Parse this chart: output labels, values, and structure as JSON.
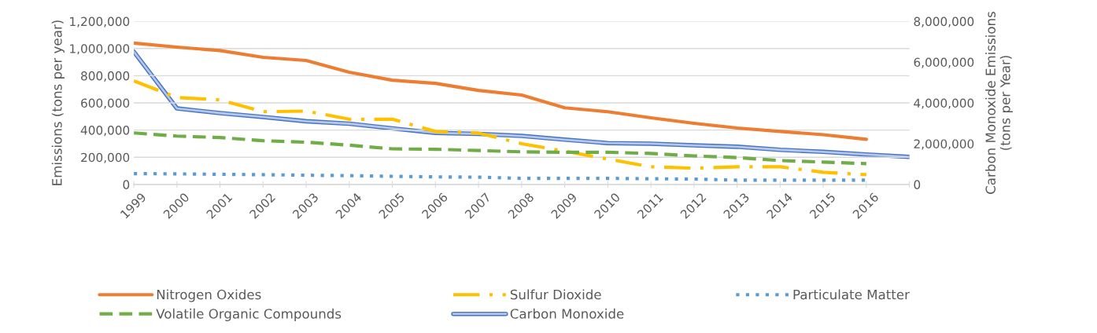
{
  "chart_data": {
    "type": "line",
    "categories": [
      "1999",
      "2000",
      "2001",
      "2002",
      "2003",
      "2004",
      "2005",
      "2006",
      "2007",
      "2008",
      "2009",
      "2010",
      "2011",
      "2012",
      "2013",
      "2014",
      "2015",
      "2016",
      null
    ],
    "series": [
      {
        "name": "Nitrogen Oxides",
        "color": "#ed7d31",
        "line_style": "solid",
        "values": [
          1040000,
          1010000,
          985000,
          935000,
          912000,
          825000,
          767000,
          744000,
          692000,
          658000,
          564000,
          535000,
          490000,
          450000,
          415000,
          390000,
          366000,
          332000,
          null
        ]
      },
      {
        "name": "Sulfur Dioxide",
        "color": "#ffc000",
        "line_style": "dashdot",
        "values": [
          762000,
          640000,
          622000,
          535000,
          540000,
          480000,
          480000,
          390000,
          378000,
          300000,
          245000,
          187000,
          130000,
          120000,
          130000,
          130000,
          90000,
          72000,
          null
        ]
      },
      {
        "name": "Particulate Matter",
        "color": "#5b9bd5",
        "line_style": "dotted",
        "values": [
          80000,
          78000,
          75000,
          72000,
          68000,
          65000,
          60000,
          56000,
          54000,
          45000,
          45000,
          45000,
          42000,
          40000,
          32000,
          32000,
          32000,
          32000,
          null
        ]
      },
      {
        "name": "Volatile Organic Compounds",
        "color": "#70ad47",
        "line_style": "dashed",
        "values": [
          379000,
          356000,
          345000,
          322000,
          311000,
          289000,
          262000,
          259000,
          250000,
          240000,
          237000,
          237000,
          228000,
          210000,
          198000,
          176000,
          165000,
          153000,
          null
        ]
      },
      {
        "name": "Carbon Monoxide",
        "color": "#4472c4",
        "line_style": "solid",
        "axis": "y2",
        "values": [
          6510000,
          3730000,
          3500000,
          3310000,
          3100000,
          2980000,
          2750000,
          2530000,
          2480000,
          2380000,
          2200000,
          2030000,
          2000000,
          1920000,
          1850000,
          1700000,
          1600000,
          1470000,
          1350000
        ]
      }
    ],
    "ylabel": "Emissions (tons per year)",
    "y2label": "Carbon Monoxide Emissions (tons per Year)",
    "ylim": [
      0,
      1200000
    ],
    "yticks": [
      {
        "value": 0,
        "label": "0"
      },
      {
        "value": 200000,
        "label": "200,000"
      },
      {
        "value": 400000,
        "label": "400,000"
      },
      {
        "value": 600000,
        "label": "600,000"
      },
      {
        "value": 800000,
        "label": "800,000"
      },
      {
        "value": 1000000,
        "label": "1,000,000"
      },
      {
        "value": 1200000,
        "label": "1,200,000"
      }
    ],
    "y2lim": [
      0,
      8000000
    ],
    "y2ticks": [
      {
        "value": 0,
        "label": "0"
      },
      {
        "value": 2000000,
        "label": "2,000,000"
      },
      {
        "value": 4000000,
        "label": "4,000,000"
      },
      {
        "value": 6000000,
        "label": "6,000,000"
      },
      {
        "value": 8000000,
        "label": "8,000,000"
      }
    ],
    "grid": "y",
    "legend": "bottom",
    "marker": "none"
  }
}
